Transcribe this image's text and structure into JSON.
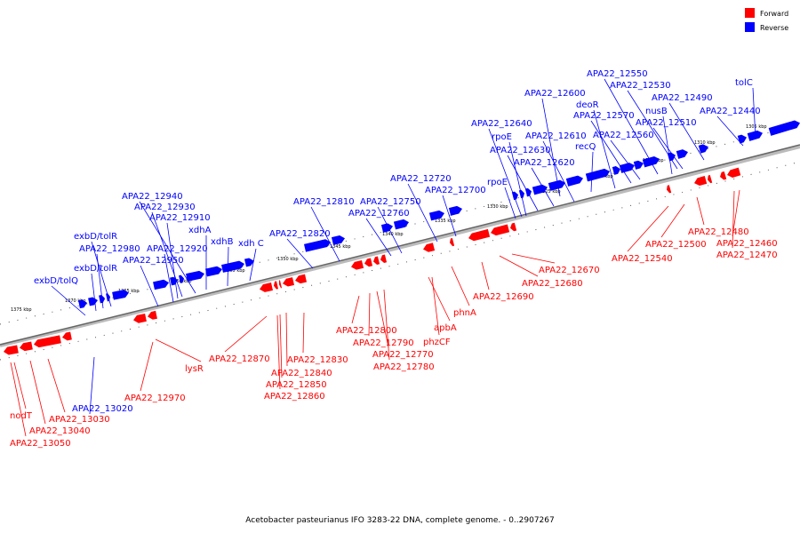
{
  "caption": "Acetobacter pasteurianus IFO 3283-22 DNA, complete genome. - 0..2907267",
  "legend": [
    {
      "label": "Forward",
      "color": "#ff0000"
    },
    {
      "label": "Reverse",
      "color": "#0000ff"
    }
  ],
  "colors": {
    "forward": "#ff0000",
    "reverse": "#0000ff",
    "backbone": "#777777"
  },
  "scale_ticks": [
    "1375 kbp",
    "1370 kbp",
    "1365 kbp",
    "1360 kbp",
    "1355 kbp",
    "1350 kbp",
    "1345 kbp",
    "1340 kbp",
    "1335 kbp",
    "1330 kbp",
    "1325 kbp",
    "1320 kbp",
    "1315 kbp",
    "1310 kbp",
    "1305 kbp"
  ],
  "reverse_labels": [
    "exbD/tolQ",
    "exbD/tolR",
    "APA22_12980",
    "exbD/tolR",
    "APA22_12950",
    "APA22_12920",
    "APA22_12910",
    "APA22_12930",
    "APA22_12940",
    "xdhA",
    "xdhB",
    "xdh C",
    "APA22_12820",
    "APA22_12810",
    "APA22_12760",
    "APA22_12750",
    "APA22_12720",
    "APA22_12700",
    "rpoE",
    "APA22_12640",
    "rpoE",
    "APA22_12630",
    "APA22_12620",
    "APA22_12610",
    "APA22_12600",
    "recQ",
    "deoR",
    "APA22_12570",
    "APA22_12560",
    "APA22_12550",
    "APA22_12530",
    "nusB",
    "APA22_12510",
    "APA22_12490",
    "APA22_12440",
    "tolC",
    "APA22_13020"
  ],
  "forward_labels": [
    "nodT",
    "APA22_13030",
    "APA22_13040",
    "APA22_13050",
    "APA22_12970",
    "lysR",
    "APA22_12870",
    "APA22_12830",
    "APA22_12840",
    "APA22_12850",
    "APA22_12860",
    "APA22_12800",
    "APA22_12790",
    "APA22_12770",
    "APA22_12780",
    "apbA",
    "phzCF",
    "phnA",
    "APA22_12690",
    "APA22_12680",
    "APA22_12670",
    "APA22_12540",
    "APA22_12500",
    "APA22_12480",
    "APA22_12460",
    "APA22_12470"
  ]
}
